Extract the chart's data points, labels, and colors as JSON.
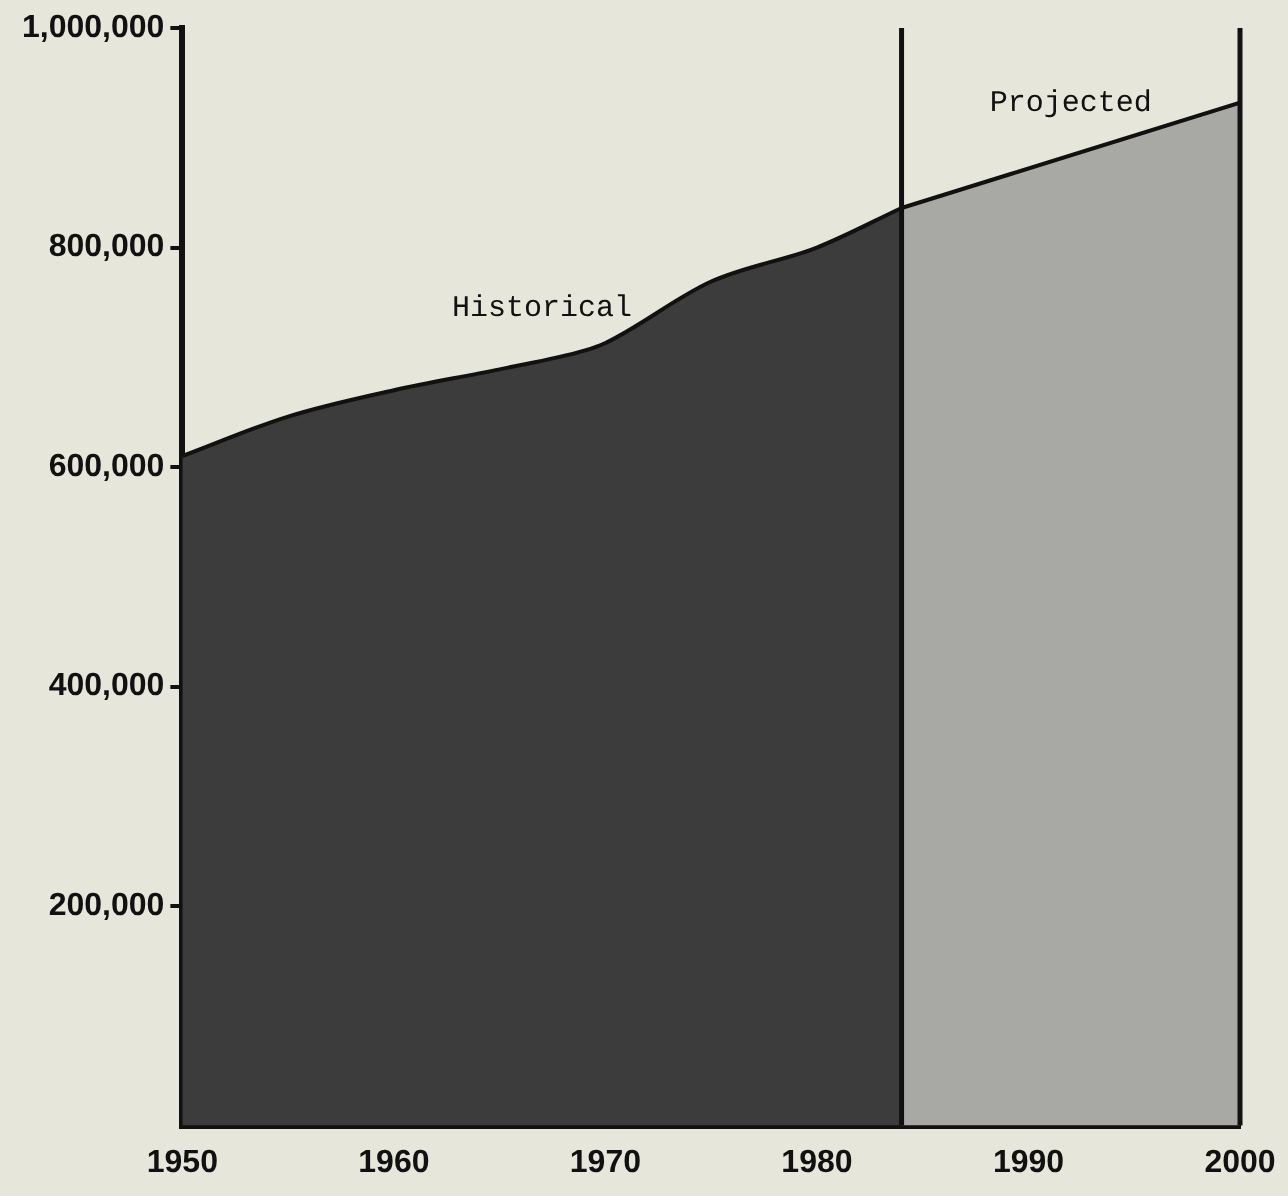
{
  "chart_data": {
    "type": "area",
    "series": [
      {
        "name": "Historical",
        "color": "#3c3c3c",
        "x": [
          1950,
          1955,
          1960,
          1965,
          1969,
          1970,
          1975,
          1980,
          1984
        ],
        "values": [
          610000,
          646000,
          670000,
          689000,
          706000,
          713000,
          769000,
          800000,
          836000
        ]
      },
      {
        "name": "Projected",
        "color": "#a8a8a4",
        "x": [
          1984,
          2000
        ],
        "values": [
          836000,
          932000
        ]
      }
    ],
    "xlim": [
      1950,
      2000
    ],
    "xticks": [
      1950,
      1960,
      1970,
      1980,
      1990,
      2000
    ],
    "ylim": [
      0,
      1000000
    ],
    "yticks": [
      {
        "value": 200000,
        "label": "200,000"
      },
      {
        "value": 400000,
        "label": "400,000"
      },
      {
        "value": 600000,
        "label": "600,000"
      },
      {
        "value": 800000,
        "label": "800,000"
      },
      {
        "value": 1000000,
        "label": "1,000,000"
      }
    ],
    "ref_lines": [
      {
        "axis": "x",
        "value": 1984,
        "color": "#111111"
      },
      {
        "axis": "x",
        "value": 2000,
        "color": "#111111"
      }
    ],
    "grid": false,
    "legend": false
  }
}
